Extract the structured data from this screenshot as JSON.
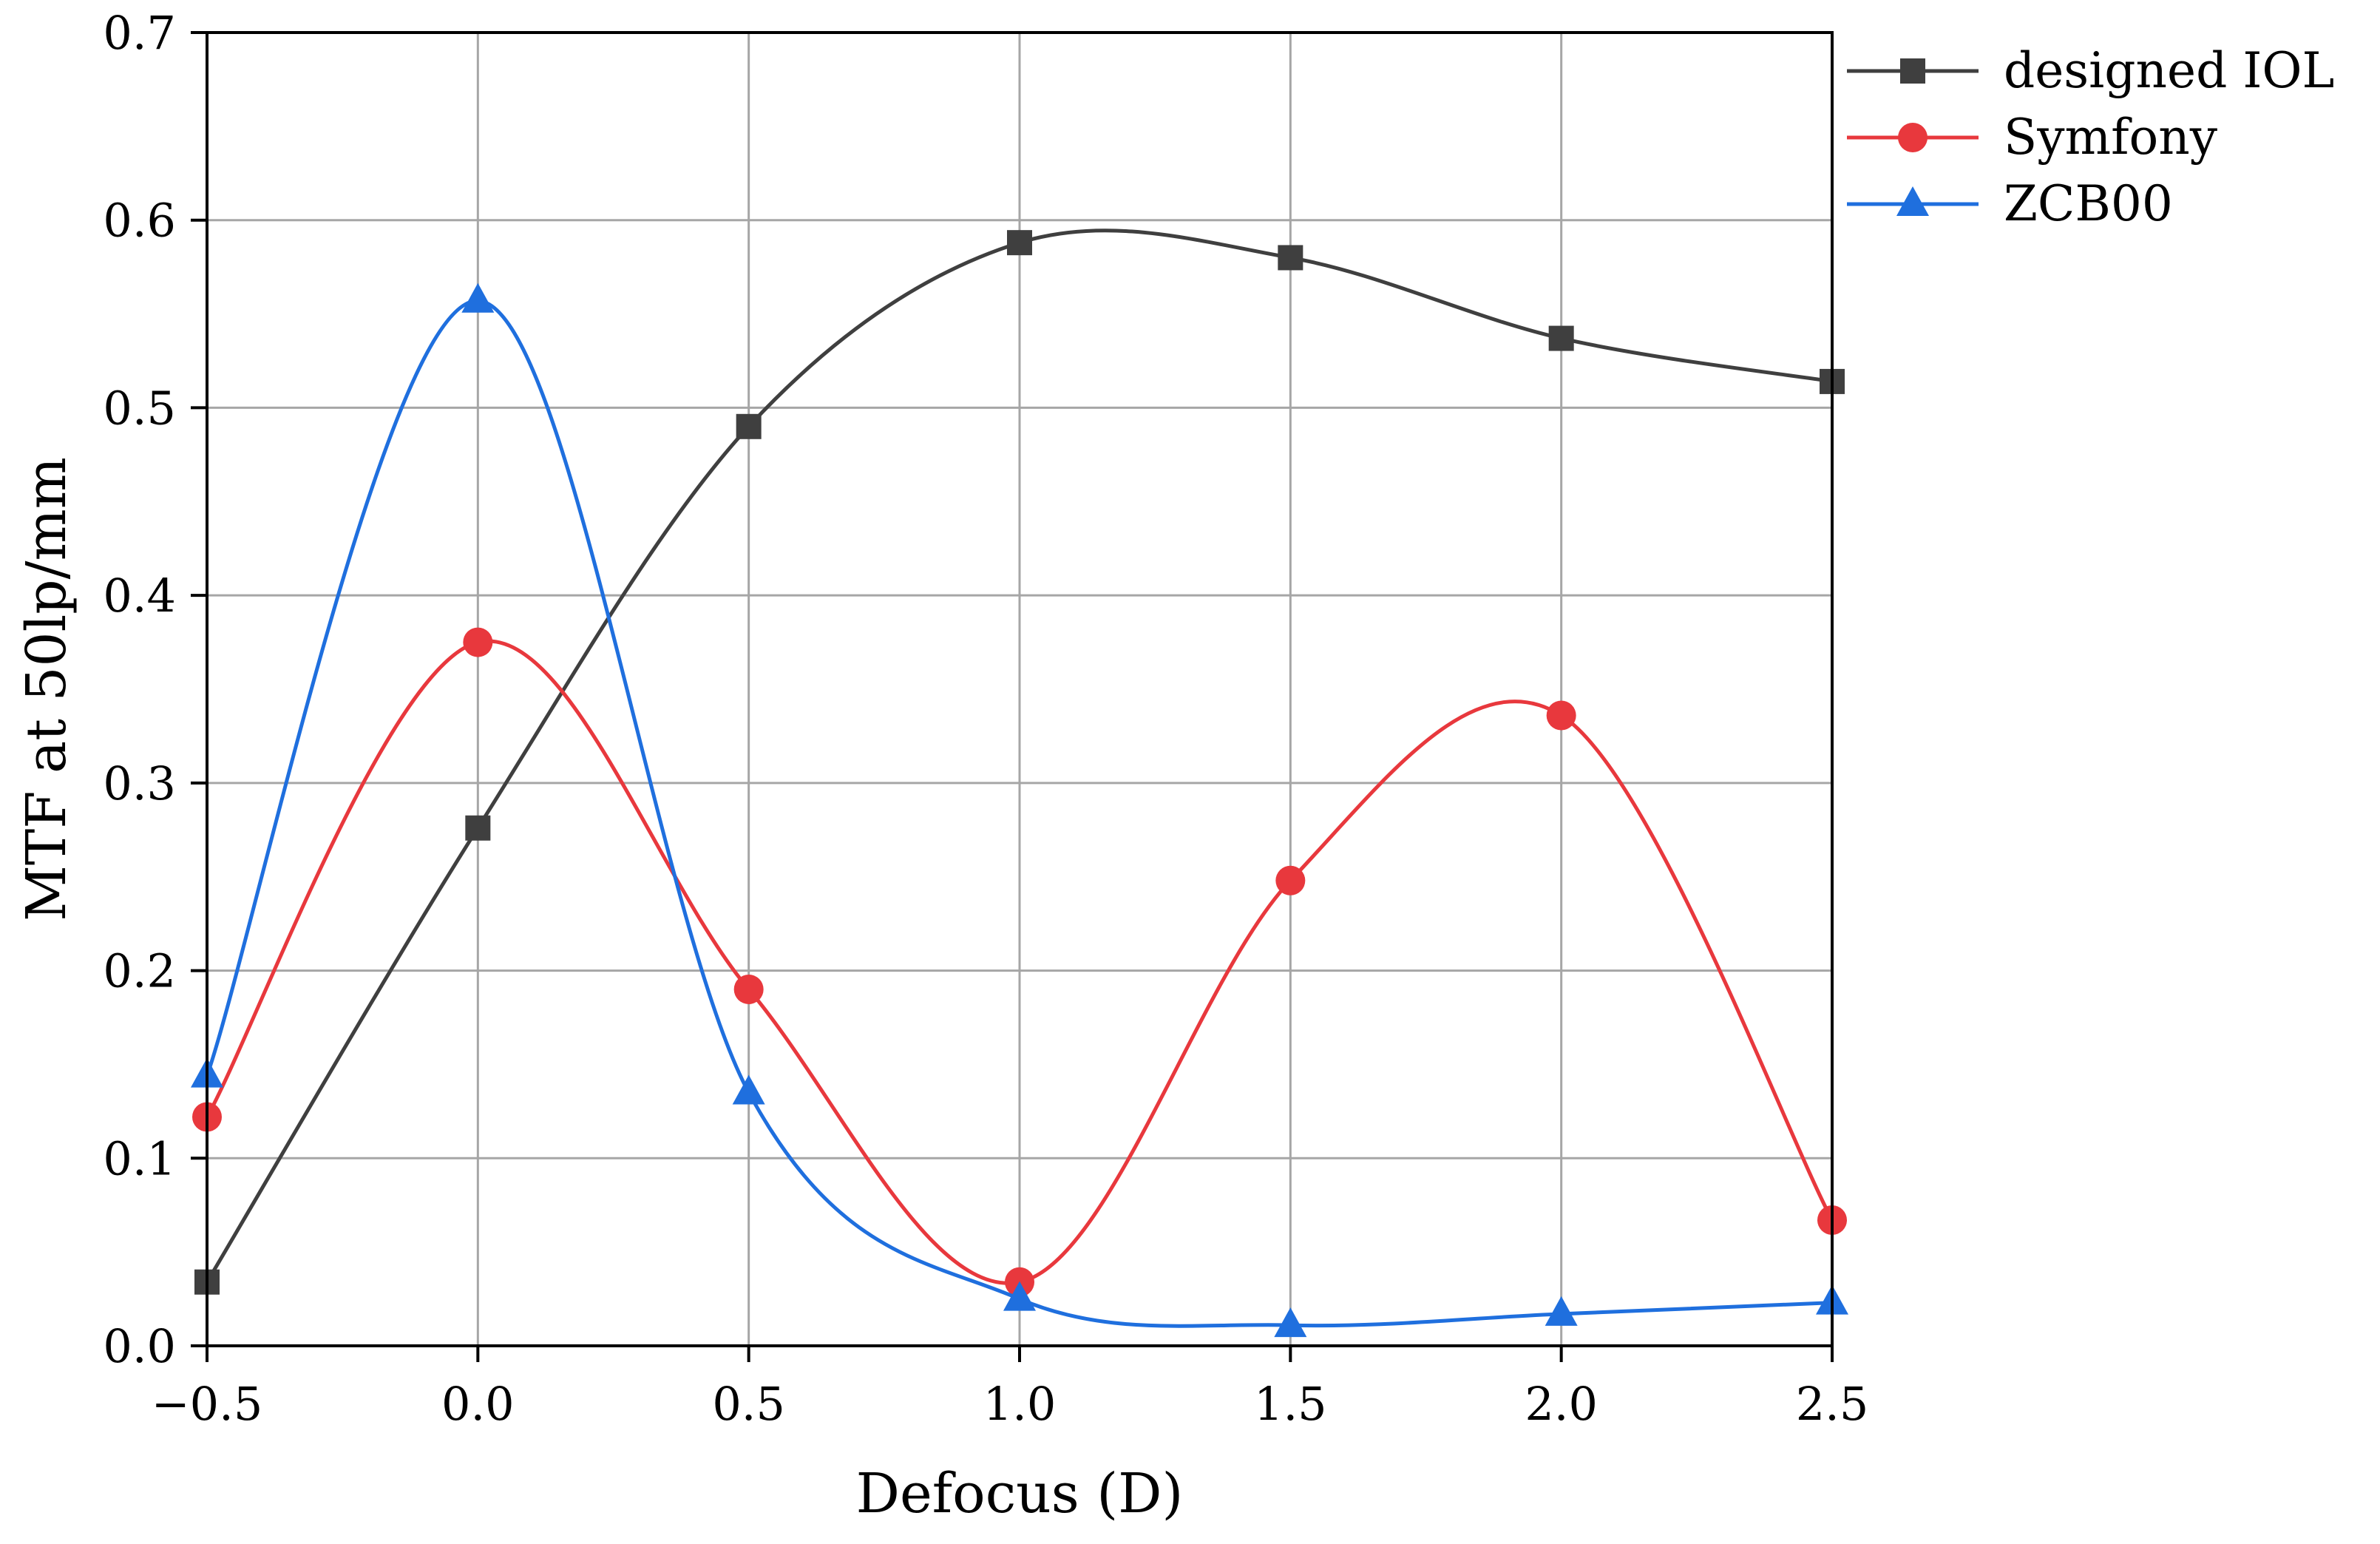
{
  "chart_data": {
    "type": "line",
    "title": "",
    "xlabel": "Defocus (D)",
    "ylabel": "MTF at 50lp/mm",
    "xlim": [
      -0.5,
      2.5
    ],
    "ylim": [
      0.0,
      0.7
    ],
    "x_ticks": [
      -0.5,
      0.0,
      0.5,
      1.0,
      1.5,
      2.0,
      2.5
    ],
    "x_tick_labels": [
      "−0.5",
      "0.0",
      "0.5",
      "1.0",
      "1.5",
      "2.0",
      "2.5"
    ],
    "y_ticks": [
      0.0,
      0.1,
      0.2,
      0.3,
      0.4,
      0.5,
      0.6,
      0.7
    ],
    "y_tick_labels": [
      "0.0",
      "0.1",
      "0.2",
      "0.3",
      "0.4",
      "0.5",
      "0.6",
      "0.7"
    ],
    "grid": true,
    "legend_position": "top-right",
    "x": [
      -0.5,
      0.0,
      0.5,
      1.0,
      1.5,
      2.0,
      2.5
    ],
    "series": [
      {
        "name": "designed IOL",
        "color": "#3f3f3f",
        "marker": "square",
        "values": [
          0.034,
          0.276,
          0.49,
          0.588,
          0.58,
          0.537,
          0.514
        ]
      },
      {
        "name": "Symfony",
        "color": "#e8383d",
        "marker": "circle",
        "values": [
          0.122,
          0.375,
          0.19,
          0.034,
          0.248,
          0.336,
          0.067
        ]
      },
      {
        "name": "ZCB00",
        "color": "#1f6fde",
        "marker": "triangle",
        "values": [
          0.144,
          0.557,
          0.135,
          0.025,
          0.011,
          0.017,
          0.023
        ]
      }
    ]
  }
}
